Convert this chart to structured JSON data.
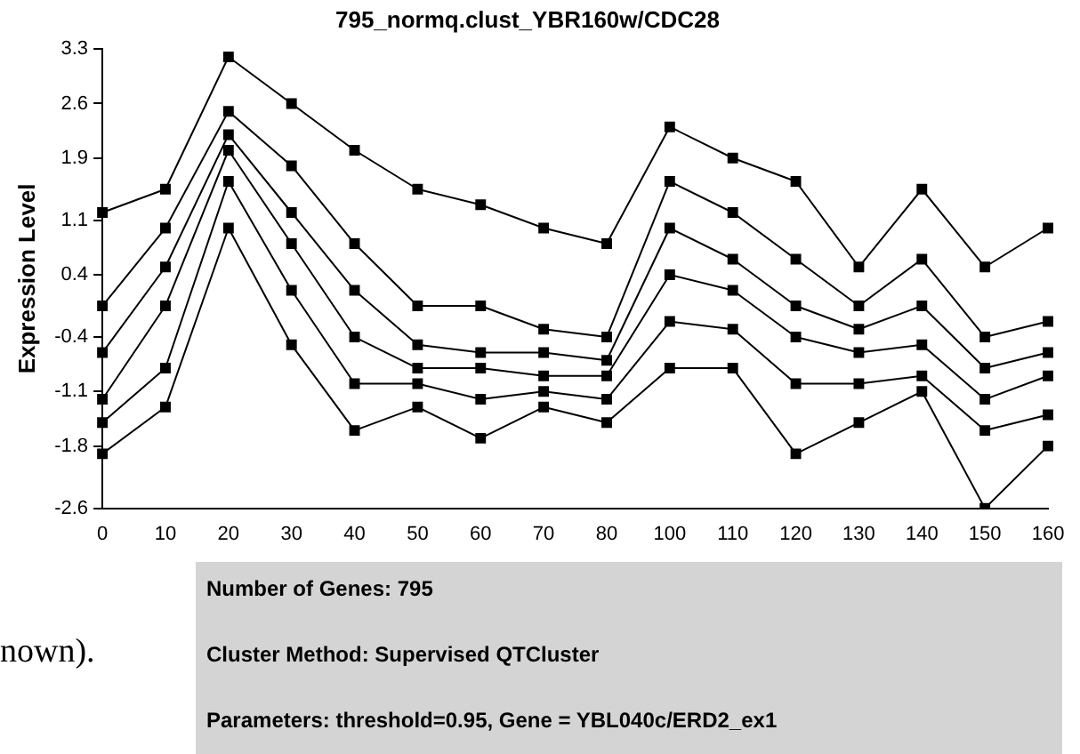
{
  "chart_data": {
    "type": "line",
    "title": "795_normq.clust_YBR160w/CDC28",
    "ylabel": "Expression Level",
    "categories": [
      "0",
      "10",
      "20",
      "30",
      "40",
      "50",
      "60",
      "70",
      "80",
      "100",
      "110",
      "120",
      "130",
      "140",
      "150",
      "160"
    ],
    "ylim": [
      -2.6,
      3.3
    ],
    "yticks": [
      -2.6,
      -1.8,
      -1.1,
      -0.4,
      0.4,
      1.1,
      1.9,
      2.6,
      3.3
    ],
    "grid": false,
    "legend": false,
    "marker": "square",
    "line_style": "solid",
    "series": [
      {
        "color": "#000000",
        "values": [
          1.2,
          1.5,
          3.2,
          2.6,
          2.0,
          1.5,
          1.3,
          1.0,
          0.8,
          2.3,
          1.9,
          1.6,
          0.5,
          1.5,
          0.5,
          1.0
        ]
      },
      {
        "color": "#000000",
        "values": [
          -1.9,
          -1.3,
          1.0,
          -0.5,
          -1.6,
          -1.3,
          -1.7,
          -1.3,
          -1.5,
          -0.8,
          -0.8,
          -1.9,
          -1.5,
          -1.1,
          -2.6,
          -1.8
        ]
      },
      {
        "color": "#000000",
        "values": [
          -0.6,
          0.5,
          2.2,
          1.2,
          0.2,
          -0.5,
          -0.6,
          -0.6,
          -0.7,
          1.0,
          0.6,
          0.0,
          -0.3,
          0.0,
          -0.8,
          -0.6
        ]
      },
      {
        "color": "#000000",
        "values": [
          -1.2,
          0.0,
          2.0,
          0.8,
          -0.4,
          -0.8,
          -0.8,
          -0.9,
          -0.9,
          0.4,
          0.2,
          -0.4,
          -0.6,
          -0.5,
          -1.2,
          -0.9
        ]
      },
      {
        "color": "#000000",
        "values": [
          0.0,
          1.0,
          2.5,
          1.8,
          0.8,
          0.0,
          0.0,
          -0.3,
          -0.4,
          1.6,
          1.2,
          0.6,
          0.0,
          0.6,
          -0.4,
          -0.2
        ]
      },
      {
        "color": "#000000",
        "values": [
          -1.5,
          -0.8,
          1.6,
          0.2,
          -1.0,
          -1.0,
          -1.2,
          -1.1,
          -1.2,
          -0.2,
          -0.3,
          -1.0,
          -1.0,
          -0.9,
          -1.6,
          -1.4
        ]
      }
    ],
    "annotations": [
      "Number of Genes: 795",
      "Cluster Method: Supervised QTCluster",
      "Parameters: threshold=0.95, Gene = YBL040c/ERD2_ex1",
      "nown)."
    ]
  }
}
